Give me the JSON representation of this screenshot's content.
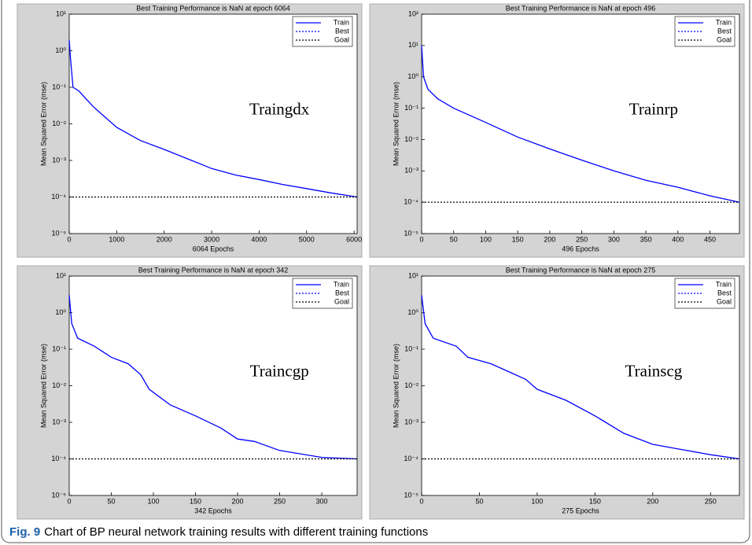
{
  "chart_data": [
    {
      "type": "line",
      "title": "Best Training Performance is NaN at epoch 6064",
      "xlabel": "6064 Epochs",
      "ylabel": "Mean Squared Error  (mse)",
      "annotation": "Traingdx",
      "yscale": "log",
      "grid": false,
      "legend": "top-right",
      "xlim": [
        0,
        6064
      ],
      "xticks": [
        0,
        1000,
        2000,
        3000,
        4000,
        5000,
        6000
      ],
      "ylim": [
        1e-05,
        10
      ],
      "yticks": [
        {
          "value": 10,
          "label": "10¹"
        },
        {
          "value": 1,
          "label": "10⁰"
        },
        {
          "value": 0.1,
          "label": "10⁻¹"
        },
        {
          "value": 0.01,
          "label": "10⁻²"
        },
        {
          "value": 0.001,
          "label": "10⁻³"
        },
        {
          "value": 0.0001,
          "label": "10⁻⁴"
        },
        {
          "value": 1e-05,
          "label": "10⁻⁵"
        }
      ],
      "series": [
        {
          "name": "Train",
          "color": "#0000ff",
          "dash": "solid",
          "x": [
            0,
            20,
            80,
            200,
            500,
            1000,
            1500,
            2000,
            2500,
            3000,
            3500,
            4000,
            4500,
            5000,
            5500,
            6064
          ],
          "values": [
            2,
            0.8,
            0.1,
            0.08,
            0.03,
            0.008,
            0.0035,
            0.002,
            0.0011,
            0.0006,
            0.0004,
            0.0003,
            0.00022,
            0.00017,
            0.00013,
            0.0001
          ]
        },
        {
          "name": "Best",
          "color": "#0000ff",
          "dash": "dotted"
        },
        {
          "name": "Goal",
          "color": "#000000",
          "dash": "dotted",
          "x": [
            0,
            6064
          ],
          "values": [
            0.0001,
            0.0001
          ]
        }
      ]
    },
    {
      "type": "line",
      "title": "Best Training Performance is NaN at epoch 496",
      "xlabel": "496 Epochs",
      "ylabel": "Mean Squared Error  (mse)",
      "annotation": "Trainrp",
      "yscale": "log",
      "grid": false,
      "legend": "top-right",
      "xlim": [
        0,
        496
      ],
      "xticks": [
        0,
        50,
        100,
        150,
        200,
        250,
        300,
        350,
        400,
        450
      ],
      "ylim": [
        1e-05,
        100
      ],
      "yticks": [
        {
          "value": 100,
          "label": "10²"
        },
        {
          "value": 10,
          "label": "10¹"
        },
        {
          "value": 1,
          "label": "10⁰"
        },
        {
          "value": 0.1,
          "label": "10⁻¹"
        },
        {
          "value": 0.01,
          "label": "10⁻²"
        },
        {
          "value": 0.001,
          "label": "10⁻³"
        },
        {
          "value": 0.0001,
          "label": "10⁻⁴"
        },
        {
          "value": 1e-05,
          "label": "10⁻⁵"
        }
      ],
      "series": [
        {
          "name": "Train",
          "color": "#0000ff",
          "dash": "solid",
          "x": [
            0,
            3,
            10,
            25,
            50,
            100,
            150,
            200,
            250,
            300,
            350,
            400,
            450,
            496
          ],
          "values": [
            10,
            1,
            0.4,
            0.2,
            0.1,
            0.035,
            0.012,
            0.005,
            0.0022,
            0.001,
            0.0005,
            0.0003,
            0.00016,
            0.0001
          ]
        },
        {
          "name": "Best",
          "color": "#0000ff",
          "dash": "dotted"
        },
        {
          "name": "Goal",
          "color": "#000000",
          "dash": "dotted",
          "x": [
            0,
            496
          ],
          "values": [
            0.0001,
            0.0001
          ]
        }
      ]
    },
    {
      "type": "line",
      "title": "Best Training Performance is NaN at epoch 342",
      "xlabel": "342 Epochs",
      "ylabel": "Mean Squared Error  (mse)",
      "annotation": "Traincgp",
      "yscale": "log",
      "grid": false,
      "legend": "top-right",
      "xlim": [
        0,
        342
      ],
      "xticks": [
        0,
        50,
        100,
        150,
        200,
        250,
        300
      ],
      "ylim": [
        1e-05,
        10
      ],
      "yticks": [
        {
          "value": 10,
          "label": "10¹"
        },
        {
          "value": 1,
          "label": "10⁰"
        },
        {
          "value": 0.1,
          "label": "10⁻¹"
        },
        {
          "value": 0.01,
          "label": "10⁻²"
        },
        {
          "value": 0.001,
          "label": "10⁻³"
        },
        {
          "value": 0.0001,
          "label": "10⁻⁴"
        },
        {
          "value": 1e-05,
          "label": "10⁻⁵"
        }
      ],
      "series": [
        {
          "name": "Train",
          "color": "#0000ff",
          "dash": "solid",
          "x": [
            0,
            3,
            10,
            30,
            50,
            70,
            85,
            95,
            120,
            150,
            180,
            200,
            220,
            250,
            300,
            342
          ],
          "values": [
            3,
            0.5,
            0.2,
            0.12,
            0.06,
            0.04,
            0.02,
            0.008,
            0.003,
            0.0015,
            0.0007,
            0.00035,
            0.0003,
            0.00017,
            0.00011,
            0.0001
          ]
        },
        {
          "name": "Best",
          "color": "#0000ff",
          "dash": "dotted"
        },
        {
          "name": "Goal",
          "color": "#000000",
          "dash": "dotted",
          "x": [
            0,
            342
          ],
          "values": [
            0.0001,
            0.0001
          ]
        }
      ]
    },
    {
      "type": "line",
      "title": "Best Training Performance is NaN at epoch 275",
      "xlabel": "275 Epochs",
      "ylabel": "Mean Squared Error  (mse)",
      "annotation": "Trainscg",
      "yscale": "log",
      "grid": false,
      "legend": "top-right",
      "xlim": [
        0,
        275
      ],
      "xticks": [
        0,
        50,
        100,
        150,
        200,
        250
      ],
      "ylim": [
        1e-05,
        10
      ],
      "yticks": [
        {
          "value": 10,
          "label": "10¹"
        },
        {
          "value": 1,
          "label": "10⁰"
        },
        {
          "value": 0.1,
          "label": "10⁻¹"
        },
        {
          "value": 0.01,
          "label": "10⁻²"
        },
        {
          "value": 0.001,
          "label": "10⁻³"
        },
        {
          "value": 0.0001,
          "label": "10⁻⁴"
        },
        {
          "value": 1e-05,
          "label": "10⁻⁵"
        }
      ],
      "series": [
        {
          "name": "Train",
          "color": "#0000ff",
          "dash": "solid",
          "x": [
            0,
            3,
            10,
            30,
            40,
            60,
            90,
            100,
            125,
            150,
            175,
            200,
            225,
            250,
            275
          ],
          "values": [
            3,
            0.5,
            0.2,
            0.12,
            0.06,
            0.04,
            0.015,
            0.008,
            0.004,
            0.0015,
            0.0005,
            0.00025,
            0.00018,
            0.00013,
            0.0001
          ]
        },
        {
          "name": "Best",
          "color": "#0000ff",
          "dash": "dotted"
        },
        {
          "name": "Goal",
          "color": "#000000",
          "dash": "dotted",
          "x": [
            0,
            275
          ],
          "values": [
            0.0001,
            0.0001
          ]
        }
      ]
    }
  ],
  "caption": {
    "label": "Fig. 9",
    "text": "Chart of BP neural network training results with different training functions"
  }
}
